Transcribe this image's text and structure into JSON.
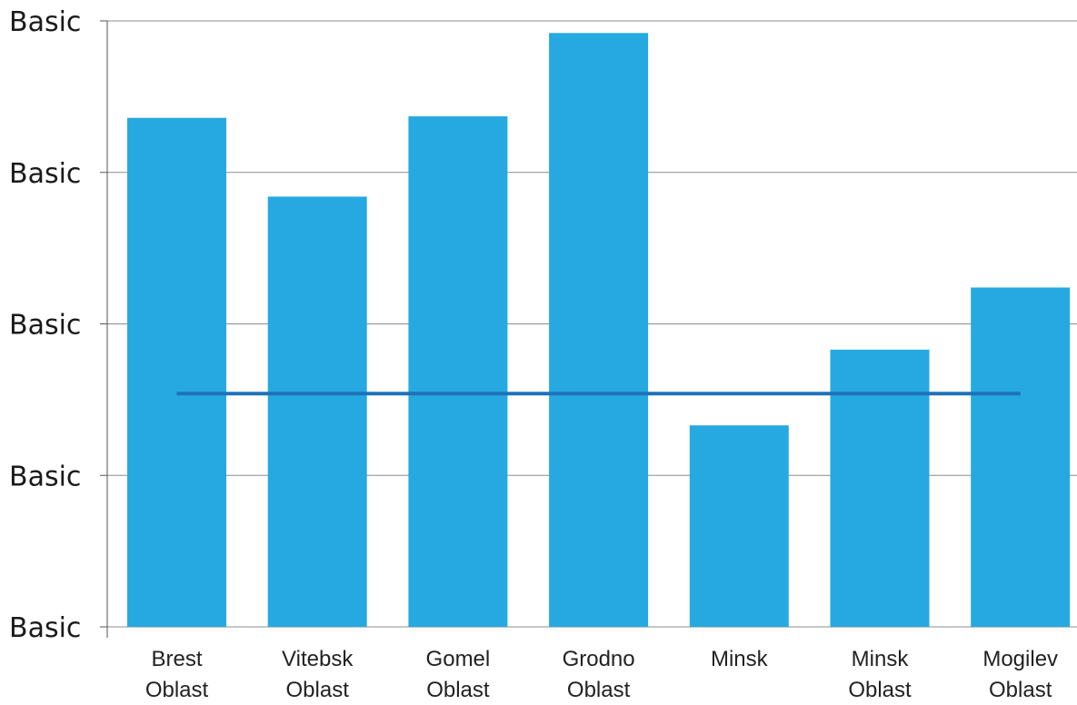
{
  "chart_data": {
    "type": "bar",
    "categories": [
      [
        "Brest",
        "Oblast"
      ],
      [
        "Vitebsk",
        "Oblast"
      ],
      [
        "Gomel",
        "Oblast"
      ],
      [
        "Grodno",
        "Oblast"
      ],
      [
        "Minsk"
      ],
      [
        "Minsk",
        "Oblast"
      ],
      [
        "Mogilev",
        "Oblast"
      ]
    ],
    "values": [
      3.36,
      2.84,
      3.37,
      3.92,
      1.33,
      1.83,
      2.24
    ],
    "average_line": 1.54,
    "ylim": [
      0,
      4
    ],
    "y_ticks": [
      0,
      1,
      2,
      3,
      4
    ],
    "y_tick_labels": [
      "Basic",
      "Basic",
      "Basic",
      "Basic",
      "Basic"
    ],
    "grid": true,
    "legend": "none",
    "colors": {
      "bar": "#25a9e0",
      "average_line": "#1f72b8",
      "grid": "#8c8c8c",
      "axis": "#555555"
    }
  }
}
